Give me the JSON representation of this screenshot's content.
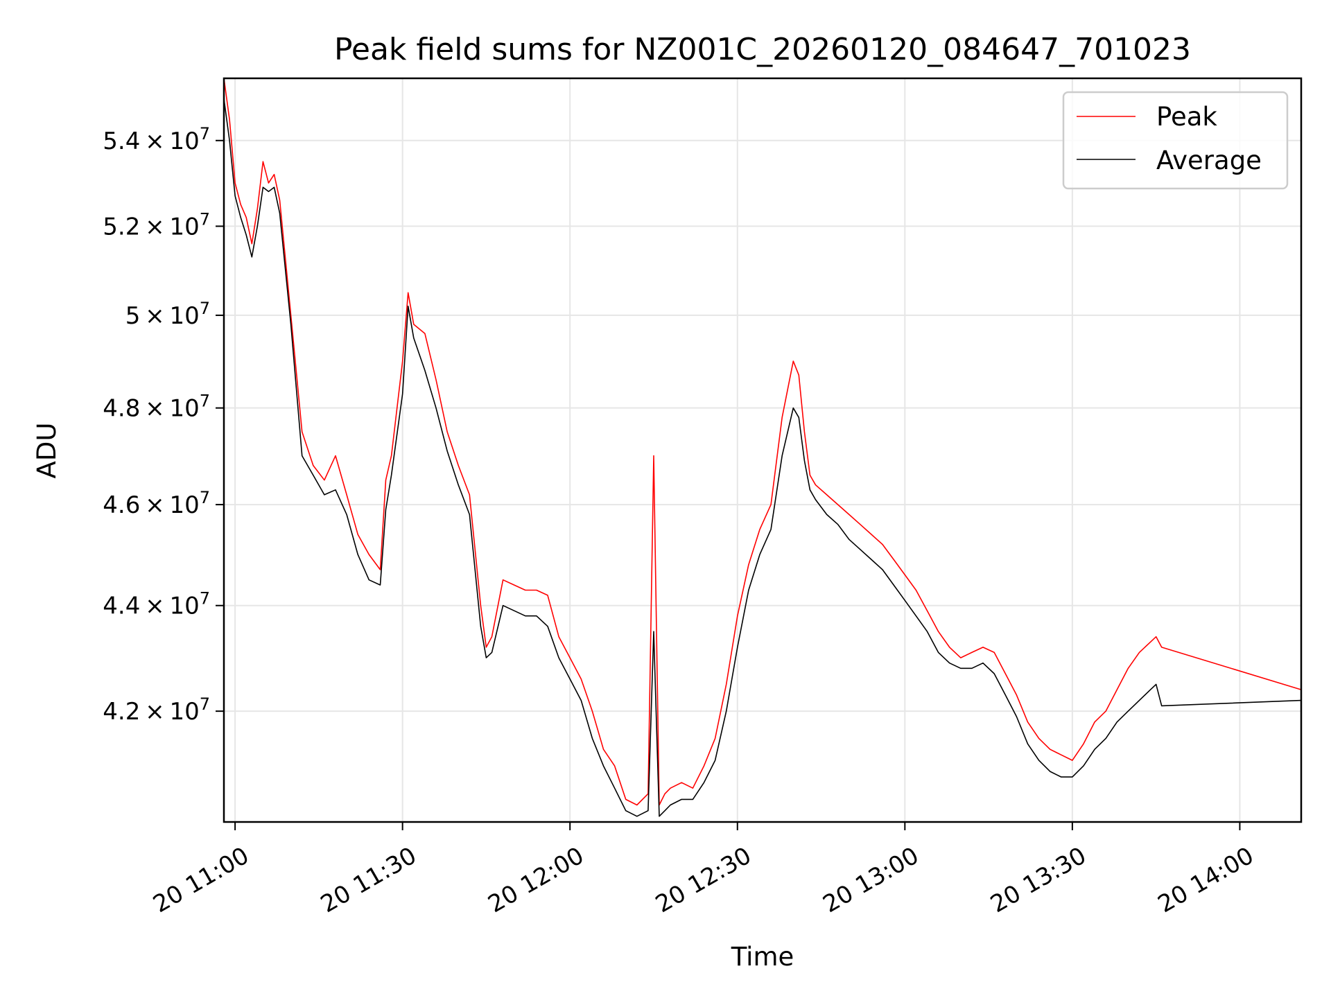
{
  "chart_data": {
    "type": "line",
    "title": "Peak field sums for NZ001C_20260120_084647_701023",
    "xlabel": "Time",
    "ylabel": "ADU",
    "y_scale": "log",
    "grid": true,
    "legend_position": "top-right",
    "xlim": [
      "20 10:58",
      "20 14:11"
    ],
    "ylim": [
      40000000,
      55500000
    ],
    "x_ticks": [
      {
        "value": "20 11:00",
        "label": "20 11:00"
      },
      {
        "value": "20 11:30",
        "label": "20 11:30"
      },
      {
        "value": "20 12:00",
        "label": "20 12:00"
      },
      {
        "value": "20 12:30",
        "label": "20 12:30"
      },
      {
        "value": "20 13:00",
        "label": "20 13:00"
      },
      {
        "value": "20 13:30",
        "label": "20 13:30"
      },
      {
        "value": "20 14:00",
        "label": "20 14:00"
      }
    ],
    "y_ticks": [
      {
        "value": 42000000,
        "mantissa": "4.2",
        "exponent": "7"
      },
      {
        "value": 44000000,
        "mantissa": "4.4",
        "exponent": "7"
      },
      {
        "value": 46000000,
        "mantissa": "4.6",
        "exponent": "7"
      },
      {
        "value": 48000000,
        "mantissa": "4.8",
        "exponent": "7"
      },
      {
        "value": 50000000,
        "mantissa": "5",
        "exponent": "7"
      },
      {
        "value": 52000000,
        "mantissa": "5.2",
        "exponent": "7"
      },
      {
        "value": 54000000,
        "mantissa": "5.4",
        "exponent": "7"
      }
    ],
    "series": [
      {
        "name": "Peak",
        "color": "#ff0000",
        "x": [
          "20 10:58",
          "20 10:59",
          "20 11:00",
          "20 11:01",
          "20 11:02",
          "20 11:03",
          "20 11:04",
          "20 11:05",
          "20 11:06",
          "20 11:07",
          "20 11:08",
          "20 11:10",
          "20 11:12",
          "20 11:14",
          "20 11:16",
          "20 11:18",
          "20 11:20",
          "20 11:22",
          "20 11:24",
          "20 11:26",
          "20 11:27",
          "20 11:28",
          "20 11:30",
          "20 11:31",
          "20 11:32",
          "20 11:34",
          "20 11:36",
          "20 11:38",
          "20 11:40",
          "20 11:42",
          "20 11:44",
          "20 11:45",
          "20 11:46",
          "20 11:48",
          "20 11:50",
          "20 11:52",
          "20 11:54",
          "20 11:56",
          "20 11:58",
          "20 12:00",
          "20 12:02",
          "20 12:04",
          "20 12:06",
          "20 12:08",
          "20 12:10",
          "20 12:12",
          "20 12:14",
          "20 12:15",
          "20 12:16",
          "20 12:17",
          "20 12:18",
          "20 12:20",
          "20 12:22",
          "20 12:24",
          "20 12:26",
          "20 12:28",
          "20 12:30",
          "20 12:32",
          "20 12:34",
          "20 12:36",
          "20 12:38",
          "20 12:40",
          "20 12:41",
          "20 12:42",
          "20 12:43",
          "20 12:44",
          "20 12:46",
          "20 12:48",
          "20 12:50",
          "20 12:52",
          "20 12:54",
          "20 12:56",
          "20 12:58",
          "20 13:00",
          "20 13:02",
          "20 13:04",
          "20 13:06",
          "20 13:08",
          "20 13:10",
          "20 13:12",
          "20 13:14",
          "20 13:16",
          "20 13:18",
          "20 13:20",
          "20 13:22",
          "20 13:24",
          "20 13:26",
          "20 13:28",
          "20 13:30",
          "20 13:32",
          "20 13:34",
          "20 13:36",
          "20 13:38",
          "20 13:40",
          "20 13:42",
          "20 13:44",
          "20 13:45",
          "20 13:46",
          "20 14:11"
        ],
        "values": [
          55500000,
          54500000,
          53000000,
          52500000,
          52200000,
          51600000,
          52400000,
          53500000,
          53000000,
          53200000,
          52600000,
          50000000,
          47500000,
          46800000,
          46500000,
          47000000,
          46200000,
          45400000,
          45000000,
          44700000,
          46500000,
          47000000,
          49000000,
          50500000,
          49800000,
          49600000,
          48600000,
          47500000,
          46800000,
          46200000,
          44000000,
          43200000,
          43400000,
          44500000,
          44400000,
          44300000,
          44300000,
          44200000,
          43400000,
          43000000,
          42600000,
          42000000,
          41300000,
          41000000,
          40400000,
          40300000,
          40500000,
          47000000,
          40300000,
          40500000,
          40600000,
          40700000,
          40600000,
          41000000,
          41500000,
          42500000,
          43800000,
          44800000,
          45500000,
          46000000,
          47800000,
          49000000,
          48700000,
          47500000,
          46600000,
          46400000,
          46200000,
          46000000,
          45800000,
          45600000,
          45400000,
          45200000,
          44900000,
          44600000,
          44300000,
          43900000,
          43500000,
          43200000,
          43000000,
          43100000,
          43200000,
          43100000,
          42700000,
          42300000,
          41800000,
          41500000,
          41300000,
          41200000,
          41100000,
          41400000,
          41800000,
          42000000,
          42400000,
          42800000,
          43100000,
          43300000,
          43400000,
          43200000,
          42400000
        ]
      },
      {
        "name": "Average",
        "color": "#000000",
        "x": [
          "20 10:58",
          "20 10:59",
          "20 11:00",
          "20 11:01",
          "20 11:02",
          "20 11:03",
          "20 11:04",
          "20 11:05",
          "20 11:06",
          "20 11:07",
          "20 11:08",
          "20 11:10",
          "20 11:12",
          "20 11:14",
          "20 11:16",
          "20 11:18",
          "20 11:20",
          "20 11:22",
          "20 11:24",
          "20 11:26",
          "20 11:27",
          "20 11:28",
          "20 11:30",
          "20 11:31",
          "20 11:32",
          "20 11:34",
          "20 11:36",
          "20 11:38",
          "20 11:40",
          "20 11:42",
          "20 11:44",
          "20 11:45",
          "20 11:46",
          "20 11:48",
          "20 11:50",
          "20 11:52",
          "20 11:54",
          "20 11:56",
          "20 11:58",
          "20 12:00",
          "20 12:02",
          "20 12:04",
          "20 12:06",
          "20 12:08",
          "20 12:10",
          "20 12:12",
          "20 12:14",
          "20 12:15",
          "20 12:16",
          "20 12:17",
          "20 12:18",
          "20 12:20",
          "20 12:22",
          "20 12:24",
          "20 12:26",
          "20 12:28",
          "20 12:30",
          "20 12:32",
          "20 12:34",
          "20 12:36",
          "20 12:38",
          "20 12:40",
          "20 12:41",
          "20 12:42",
          "20 12:43",
          "20 12:44",
          "20 12:46",
          "20 12:48",
          "20 12:50",
          "20 12:52",
          "20 12:54",
          "20 12:56",
          "20 12:58",
          "20 13:00",
          "20 13:02",
          "20 13:04",
          "20 13:06",
          "20 13:08",
          "20 13:10",
          "20 13:12",
          "20 13:14",
          "20 13:16",
          "20 13:18",
          "20 13:20",
          "20 13:22",
          "20 13:24",
          "20 13:26",
          "20 13:28",
          "20 13:30",
          "20 13:32",
          "20 13:34",
          "20 13:36",
          "20 13:38",
          "20 13:40",
          "20 13:42",
          "20 13:44",
          "20 13:45",
          "20 13:46",
          "20 14:11"
        ],
        "values": [
          55000000,
          54000000,
          52700000,
          52200000,
          51800000,
          51300000,
          52000000,
          52900000,
          52800000,
          52900000,
          52300000,
          49800000,
          47000000,
          46600000,
          46200000,
          46300000,
          45800000,
          45000000,
          44500000,
          44400000,
          45900000,
          46600000,
          48300000,
          50200000,
          49500000,
          48800000,
          48000000,
          47100000,
          46400000,
          45800000,
          43600000,
          43000000,
          43100000,
          44000000,
          43900000,
          43800000,
          43800000,
          43600000,
          43000000,
          42600000,
          42200000,
          41500000,
          41000000,
          40600000,
          40200000,
          40100000,
          40200000,
          43500000,
          40100000,
          40200000,
          40300000,
          40400000,
          40400000,
          40700000,
          41100000,
          42000000,
          43200000,
          44300000,
          45000000,
          45500000,
          47000000,
          48000000,
          47800000,
          46900000,
          46300000,
          46100000,
          45800000,
          45600000,
          45300000,
          45100000,
          44900000,
          44700000,
          44400000,
          44100000,
          43800000,
          43500000,
          43100000,
          42900000,
          42800000,
          42800000,
          42900000,
          42700000,
          42300000,
          41900000,
          41400000,
          41100000,
          40900000,
          40800000,
          40800000,
          41000000,
          41300000,
          41500000,
          41800000,
          42000000,
          42200000,
          42400000,
          42500000,
          42100000,
          42200000
        ]
      }
    ]
  }
}
